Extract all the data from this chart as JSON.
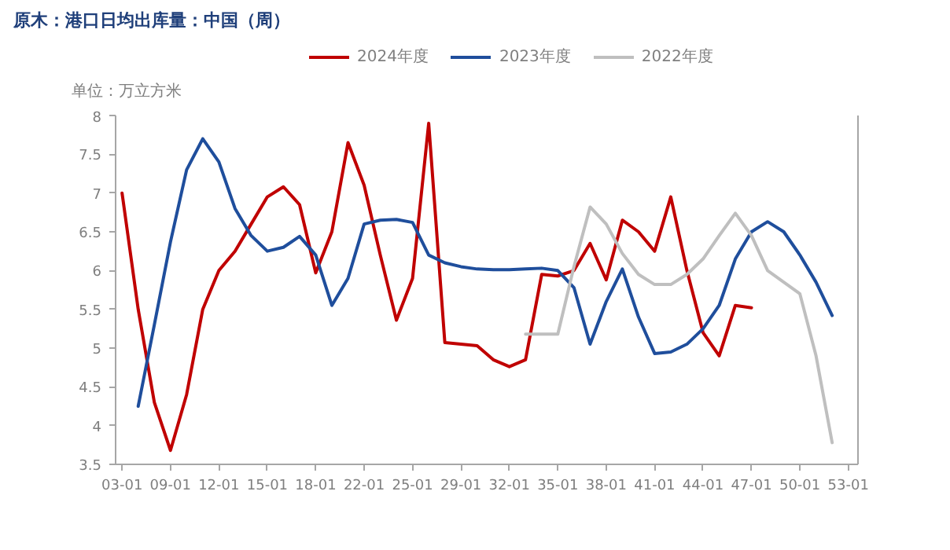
{
  "chart_data": {
    "type": "line",
    "title": "原木：港口日均出库量：中国（周）",
    "ylabel": "单位：万立方米",
    "categories": [
      "03-01",
      null,
      null,
      "09-01",
      null,
      null,
      "12-01",
      null,
      null,
      "15-01",
      null,
      null,
      "18-01",
      null,
      null,
      "22-01",
      null,
      null,
      "25-01",
      null,
      null,
      "29-01",
      null,
      null,
      "32-01",
      null,
      null,
      "35-01",
      null,
      null,
      "38-01",
      null,
      null,
      "41-01",
      null,
      null,
      "44-01",
      null,
      null,
      "47-01",
      null,
      null,
      "50-01",
      null,
      null,
      "53-01"
    ],
    "ylim": [
      3.5,
      8
    ],
    "yticks": [
      3.5,
      4,
      4.5,
      5,
      5.5,
      6,
      6.5,
      7,
      7.5,
      8
    ],
    "grid": false,
    "legend": "top",
    "line_style": "solid",
    "marker": "none",
    "series": [
      {
        "name": "2024年度",
        "color": "#c00000",
        "values": [
          7.0,
          5.5,
          4.3,
          3.68,
          4.4,
          5.5,
          6.0,
          6.25,
          6.6,
          6.95,
          7.08,
          6.85,
          5.97,
          6.5,
          7.65,
          7.1,
          6.2,
          5.36,
          5.9,
          7.9,
          5.07,
          5.05,
          5.03,
          4.85,
          4.76,
          4.85,
          5.95,
          5.93,
          6.0,
          6.35,
          5.88,
          6.65,
          6.5,
          6.25,
          6.95,
          6.0,
          5.2,
          4.9,
          5.55,
          5.52,
          null,
          null,
          null,
          null,
          null,
          null
        ]
      },
      {
        "name": "2023年度",
        "color": "#1f4e9c",
        "values": [
          null,
          4.25,
          5.3,
          6.37,
          7.3,
          7.7,
          7.4,
          6.8,
          6.45,
          6.25,
          6.3,
          6.44,
          6.2,
          5.55,
          5.9,
          6.6,
          6.65,
          6.66,
          6.62,
          6.2,
          6.1,
          6.05,
          6.02,
          6.01,
          6.01,
          6.02,
          6.03,
          6.0,
          5.78,
          5.05,
          5.6,
          6.02,
          5.4,
          4.93,
          4.95,
          5.05,
          5.25,
          5.55,
          6.15,
          6.5,
          6.63,
          6.5,
          6.2,
          5.85,
          5.42,
          null
        ]
      },
      {
        "name": "2022年度",
        "color": "#bfbfbf",
        "values": [
          null,
          null,
          null,
          null,
          null,
          null,
          null,
          null,
          null,
          null,
          null,
          null,
          null,
          null,
          null,
          null,
          null,
          null,
          null,
          null,
          null,
          null,
          null,
          null,
          null,
          5.18,
          5.18,
          5.18,
          6.05,
          6.82,
          6.6,
          6.22,
          5.95,
          5.82,
          5.82,
          5.95,
          6.15,
          6.45,
          6.74,
          6.45,
          6.0,
          5.85,
          5.7,
          4.9,
          3.78,
          null
        ]
      }
    ]
  }
}
